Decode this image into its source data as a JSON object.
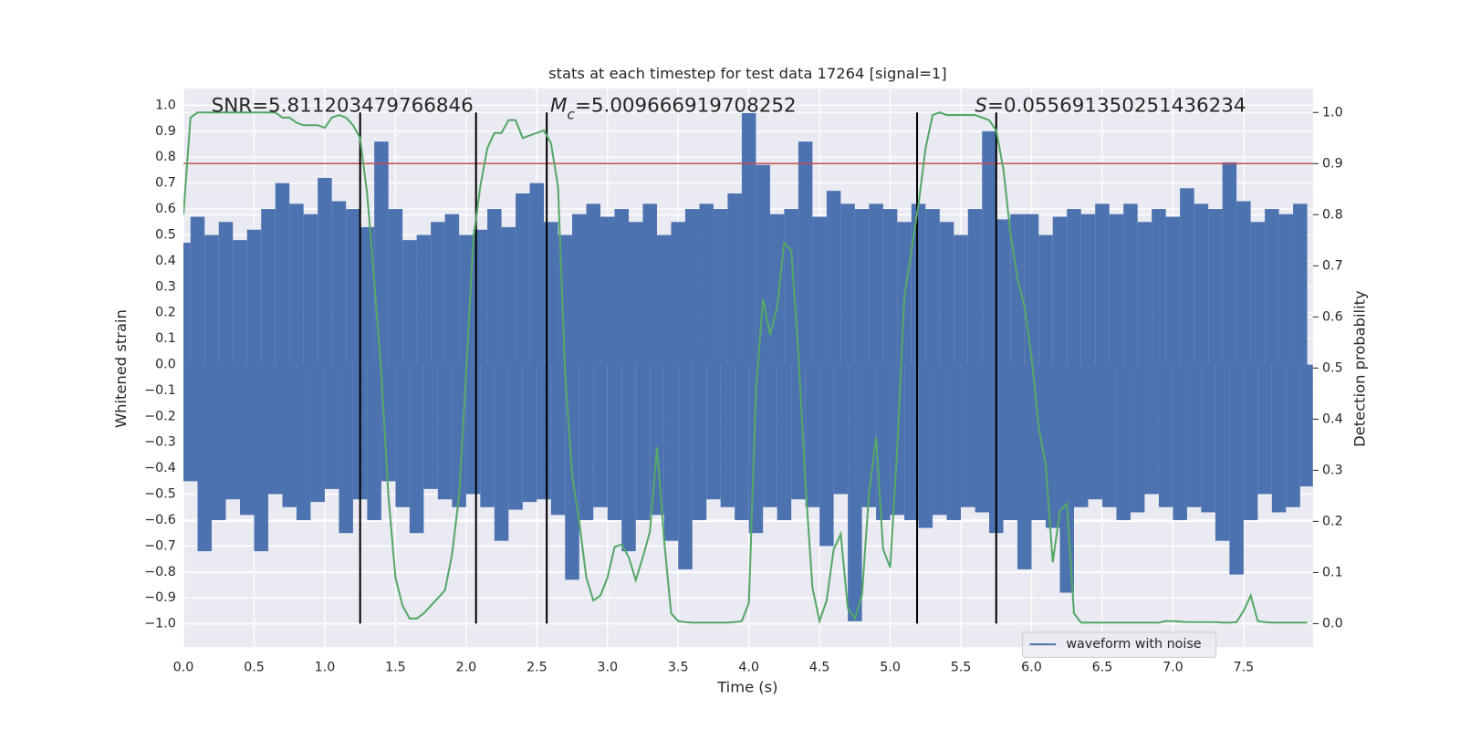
{
  "chart_data": {
    "type": "line",
    "title": "stats at each timestep for test data 17264 [signal=1]",
    "xlabel": "Time (s)",
    "ylabel": "Whitened strain",
    "y2label": "Detection probability",
    "annotations": [
      {
        "rest": "SNR=5.811203479766846"
      },
      {
        "main": "M",
        "sub": "c",
        "rest": "=5.009666919708252"
      },
      {
        "main": "S",
        "rest": "=0.055691350251436234"
      }
    ],
    "x": [
      0,
      0.05,
      0.1,
      0.15,
      0.2,
      0.25,
      0.3,
      0.35,
      0.4,
      0.45,
      0.5,
      0.55,
      0.6,
      0.65,
      0.7,
      0.75,
      0.8,
      0.85,
      0.9,
      0.95,
      1.0,
      1.05,
      1.1,
      1.15,
      1.2,
      1.25,
      1.3,
      1.35,
      1.4,
      1.45,
      1.5,
      1.55,
      1.6,
      1.65,
      1.7,
      1.75,
      1.8,
      1.85,
      1.9,
      1.95,
      2.0,
      2.05,
      2.1,
      2.15,
      2.2,
      2.25,
      2.3,
      2.35,
      2.4,
      2.45,
      2.5,
      2.55,
      2.6,
      2.65,
      2.7,
      2.75,
      2.8,
      2.85,
      2.9,
      2.95,
      3.0,
      3.05,
      3.1,
      3.15,
      3.2,
      3.25,
      3.3,
      3.35,
      3.4,
      3.45,
      3.5,
      3.55,
      3.6,
      3.65,
      3.7,
      3.75,
      3.8,
      3.85,
      3.9,
      3.95,
      4.0,
      4.05,
      4.1,
      4.15,
      4.2,
      4.25,
      4.3,
      4.35,
      4.4,
      4.45,
      4.5,
      4.55,
      4.6,
      4.65,
      4.7,
      4.75,
      4.8,
      4.85,
      4.9,
      4.95,
      5.0,
      5.05,
      5.1,
      5.15,
      5.2,
      5.25,
      5.3,
      5.35,
      5.4,
      5.45,
      5.5,
      5.55,
      5.6,
      5.65,
      5.7,
      5.75,
      5.8,
      5.85,
      5.9,
      5.95,
      6.0,
      6.05,
      6.1,
      6.15,
      6.2,
      6.25,
      6.3,
      6.35,
      6.4,
      6.45,
      6.5,
      6.55,
      6.6,
      6.65,
      6.7,
      6.75,
      6.8,
      6.85,
      6.9,
      6.95,
      7.0,
      7.05,
      7.1,
      7.15,
      7.2,
      7.25,
      7.3,
      7.35,
      7.4,
      7.45,
      7.5,
      7.55,
      7.6,
      7.65,
      7.7,
      7.75,
      7.8,
      7.85,
      7.9,
      7.95
    ],
    "series": [
      {
        "name": "waveform with noise",
        "color": "#4c72b0",
        "values": [
          0.47,
          -0.45,
          0.57,
          -0.72,
          0.5,
          -0.6,
          0.55,
          -0.52,
          0.48,
          -0.58,
          0.52,
          -0.72,
          0.6,
          -0.5,
          0.7,
          -0.55,
          0.62,
          -0.6,
          0.58,
          -0.53,
          0.72,
          -0.48,
          0.63,
          -0.65,
          0.6,
          -0.52,
          0.53,
          -0.6,
          0.86,
          -0.45,
          0.6,
          -0.55,
          0.48,
          -0.65,
          0.5,
          -0.48,
          0.55,
          -0.52,
          0.58,
          -0.55,
          0.5,
          -0.5,
          0.52,
          -0.55,
          0.6,
          -0.68,
          0.53,
          -0.56,
          0.66,
          -0.53,
          0.7,
          -0.52,
          0.55,
          -0.58,
          0.5,
          -0.83,
          0.58,
          -0.6,
          0.62,
          -0.55,
          0.57,
          -0.6,
          0.6,
          -0.72,
          0.55,
          -0.6,
          0.62,
          -0.58,
          0.5,
          -0.68,
          0.55,
          -0.79,
          0.6,
          -0.6,
          0.62,
          -0.52,
          0.6,
          -0.55,
          0.66,
          -0.6,
          0.97,
          -0.65,
          0.77,
          -0.55,
          0.58,
          -0.6,
          0.6,
          -0.52,
          0.86,
          -0.55,
          0.57,
          -0.7,
          0.67,
          -0.5,
          0.62,
          -0.99,
          0.6,
          -0.55,
          0.62,
          -0.6,
          0.6,
          -0.58,
          0.55,
          -0.6,
          0.62,
          -0.63,
          0.6,
          -0.58,
          0.55,
          -0.6,
          0.5,
          -0.55,
          0.6,
          -0.57,
          0.9,
          -0.65,
          0.56,
          -0.6,
          0.58,
          -0.79,
          0.58,
          -0.6,
          0.5,
          -0.63,
          0.57,
          -0.88,
          0.6,
          -0.55,
          0.58,
          -0.52,
          0.62,
          -0.55,
          0.58,
          -0.6,
          0.62,
          -0.57,
          0.55,
          -0.5,
          0.6,
          -0.55,
          0.57,
          -0.6,
          0.68,
          -0.55,
          0.62,
          -0.57,
          0.6,
          -0.68,
          0.78,
          -0.81,
          0.63,
          -0.6,
          0.55,
          -0.5,
          0.6,
          -0.57,
          0.58,
          -0.55,
          0.62,
          -0.47
        ]
      },
      {
        "color": "#55a868",
        "axis": "y2",
        "values": [
          0.8,
          0.99,
          1.0,
          1.0,
          1.0,
          1.0,
          1.0,
          1.0,
          1.0,
          1.0,
          1.0,
          1.0,
          1.0,
          1.0,
          0.99,
          0.99,
          0.98,
          0.975,
          0.975,
          0.975,
          0.97,
          0.99,
          0.995,
          0.99,
          0.975,
          0.95,
          0.84,
          0.67,
          0.49,
          0.25,
          0.09,
          0.035,
          0.01,
          0.01,
          0.02,
          0.035,
          0.05,
          0.065,
          0.135,
          0.25,
          0.49,
          0.75,
          0.855,
          0.93,
          0.96,
          0.96,
          0.985,
          0.985,
          0.95,
          0.955,
          0.96,
          0.965,
          0.94,
          0.855,
          0.49,
          0.29,
          0.2,
          0.09,
          0.045,
          0.055,
          0.09,
          0.15,
          0.155,
          0.13,
          0.085,
          0.13,
          0.18,
          0.345,
          0.165,
          0.02,
          0.005,
          0.003,
          0.002,
          0.002,
          0.002,
          0.002,
          0.002,
          0.002,
          0.003,
          0.005,
          0.04,
          0.455,
          0.635,
          0.565,
          0.62,
          0.745,
          0.73,
          0.53,
          0.275,
          0.07,
          0.005,
          0.045,
          0.145,
          0.175,
          0.03,
          0.01,
          0.055,
          0.255,
          0.365,
          0.145,
          0.11,
          0.345,
          0.64,
          0.73,
          0.82,
          0.93,
          0.995,
          1.0,
          0.995,
          0.995,
          0.995,
          0.995,
          0.995,
          0.99,
          0.985,
          0.965,
          0.89,
          0.765,
          0.675,
          0.62,
          0.52,
          0.385,
          0.31,
          0.12,
          0.22,
          0.235,
          0.02,
          0.002,
          0.002,
          0.002,
          0.002,
          0.002,
          0.002,
          0.002,
          0.002,
          0.002,
          0.002,
          0.002,
          0.002,
          0.005,
          0.005,
          0.004,
          0.003,
          0.003,
          0.003,
          0.003,
          0.003,
          0.002,
          0.002,
          0.003,
          0.025,
          0.055,
          0.005,
          0.003,
          0.002,
          0.002,
          0.002,
          0.002,
          0.002,
          0.002
        ]
      }
    ],
    "hlines": [
      {
        "value": 0.9,
        "axis": "y2",
        "color": "#c44e52"
      }
    ],
    "vlines": [
      1.25,
      2.07,
      2.57,
      5.19,
      5.75
    ],
    "vline_span": [
      0,
      1
    ],
    "vline_color": "#000000",
    "xlim": [
      0,
      7.99
    ],
    "ylim": [
      -1.09,
      1.065
    ],
    "y2lim": [
      -0.046,
      1.047
    ],
    "xticks": [
      {
        "value": 0,
        "label": "0.0"
      },
      0.5,
      {
        "value": 1,
        "label": "1.0"
      },
      1.5,
      {
        "value": 2,
        "label": "2.0"
      },
      2.5,
      {
        "value": 3,
        "label": "3.0"
      },
      3.5,
      {
        "value": 4,
        "label": "4.0"
      },
      4.5,
      {
        "value": 5,
        "label": "5.0"
      },
      5.5,
      {
        "value": 6,
        "label": "6.0"
      },
      6.5,
      {
        "value": 7,
        "label": "7.0"
      },
      7.5
    ],
    "yticks": [
      {
        "value": -1,
        "label": "−1.0"
      },
      {
        "value": -0.9,
        "label": "−0.9"
      },
      {
        "value": -0.8,
        "label": "−0.8"
      },
      {
        "value": -0.7,
        "label": "−0.7"
      },
      {
        "value": -0.6,
        "label": "−0.6"
      },
      {
        "value": -0.5,
        "label": "−0.5"
      },
      {
        "value": -0.4,
        "label": "−0.4"
      },
      {
        "value": -0.3,
        "label": "−0.3"
      },
      {
        "value": -0.2,
        "label": "−0.2"
      },
      {
        "value": -0.1,
        "label": "−0.1"
      },
      {
        "value": 0,
        "label": "0.0"
      },
      0.1,
      0.2,
      0.3,
      0.4,
      0.5,
      0.6,
      0.7,
      0.8,
      0.9,
      {
        "value": 1,
        "label": "1.0"
      }
    ],
    "y2ticks": [
      {
        "value": 0,
        "label": "0.0"
      },
      0.1,
      0.2,
      0.3,
      0.4,
      0.5,
      0.6,
      0.7,
      0.8,
      0.9,
      {
        "value": 1,
        "label": "1.0"
      }
    ],
    "grid": true,
    "legend": "lower right"
  }
}
